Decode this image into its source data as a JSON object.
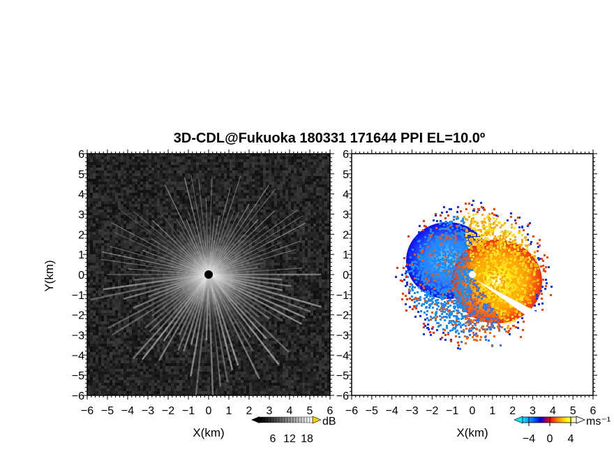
{
  "title": "3D-CDL@Fukuoka 180331 171644 PPI EL=10.0º",
  "chart_data": [
    {
      "type": "heatmap",
      "panel": "left",
      "field": "echo intensity",
      "xlabel": "X(km)",
      "ylabel": "Y(km)",
      "xlim": [
        -6,
        6
      ],
      "ylim": [
        -6,
        6
      ],
      "xticks": [
        "−6",
        "−5",
        "−4",
        "−3",
        "−2",
        "−1",
        "0",
        "1",
        "2",
        "3",
        "4",
        "5",
        "6"
      ],
      "yticks": [
        "6",
        "5",
        "4",
        "3",
        "2",
        "1",
        "0",
        "−1",
        "−2",
        "−3",
        "−4",
        "−5",
        "−6"
      ],
      "colorbar": {
        "unit": "dB",
        "ticks": [
          "6",
          "12",
          "18"
        ],
        "range": [
          0,
          21
        ],
        "colors": [
          "#000000",
          "#ffffff"
        ]
      }
    },
    {
      "type": "heatmap",
      "panel": "right",
      "field": "Doppler velocity",
      "xlabel": "X(km)",
      "xlim": [
        -6,
        6
      ],
      "ylim": [
        -6,
        6
      ],
      "xticks": [
        "−6",
        "−5",
        "−4",
        "−3",
        "−2",
        "−1",
        "0",
        "1",
        "2",
        "3",
        "4",
        "5",
        "6"
      ],
      "yticks": [
        "6",
        "5",
        "4",
        "3",
        "2",
        "1",
        "0",
        "−1",
        "−2",
        "−3",
        "−4",
        "−5",
        "−6"
      ],
      "colorbar": {
        "unit": "ms⁻¹",
        "ticks": [
          "−4",
          "0",
          "4"
        ],
        "range": [
          -6,
          6
        ],
        "colors": [
          "#00ffff",
          "#0000ff",
          "#ff0000",
          "#ffff00",
          "#ffffff"
        ]
      }
    }
  ]
}
